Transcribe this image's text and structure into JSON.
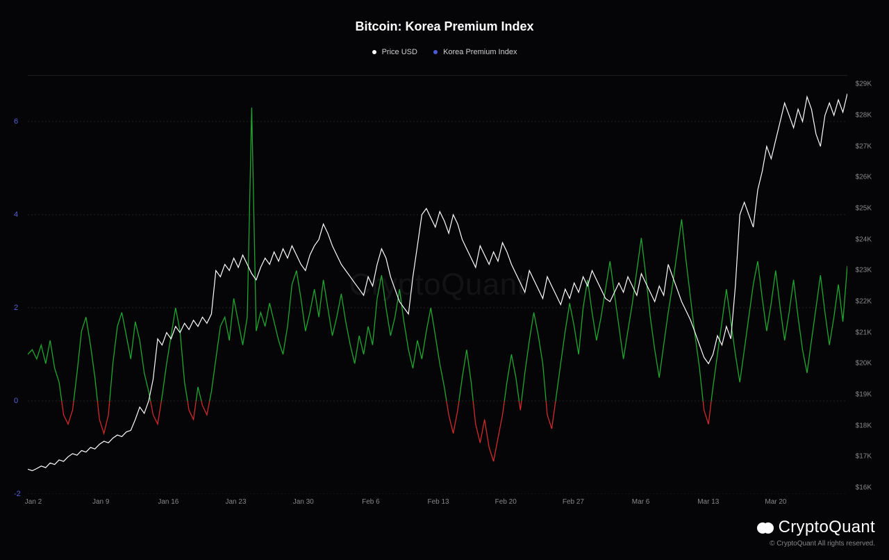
{
  "title": "Bitcoin: Korea Premium Index",
  "legend": {
    "price": {
      "label": "Price USD",
      "color": "#ffffff"
    },
    "premium": {
      "label": "Korea Premium Index",
      "color": "#4a5ad8"
    }
  },
  "watermark": "CryptoQuant",
  "footer": {
    "brand": "CryptoQuant",
    "copyright": "© CryptoQuant All rights reserved."
  },
  "chart": {
    "type": "dual-axis-line",
    "background_color": "#050507",
    "grid_color": "#222222",
    "x": {
      "ticks": [
        "Jan 2",
        "Jan 9",
        "Jan 16",
        "Jan 23",
        "Jan 30",
        "Feb 6",
        "Feb 13",
        "Feb 20",
        "Feb 27",
        "Mar 6",
        "Mar 13",
        "Mar 20"
      ],
      "range": [
        0,
        84
      ]
    },
    "y_left": {
      "label_color": "#5562d6",
      "ticks": [
        -2,
        0,
        2,
        4,
        6
      ],
      "range": [
        -2,
        7
      ]
    },
    "y_right": {
      "label_color": "#888888",
      "ticks": [
        "$16K",
        "$17K",
        "$18K",
        "$19K",
        "$20K",
        "$21K",
        "$22K",
        "$23K",
        "$24K",
        "$25K",
        "$26K",
        "$27K",
        "$28K",
        "$29K"
      ],
      "tick_values": [
        16000,
        17000,
        18000,
        19000,
        20000,
        21000,
        22000,
        23000,
        24000,
        25000,
        26000,
        27000,
        28000,
        29000
      ],
      "range": [
        15800,
        29300
      ]
    },
    "series": {
      "price": {
        "color": "#ffffff",
        "stroke_width": 1.2,
        "data": [
          16600,
          16550,
          16620,
          16700,
          16650,
          16800,
          16750,
          16900,
          16850,
          17000,
          17100,
          17050,
          17200,
          17150,
          17300,
          17250,
          17400,
          17500,
          17450,
          17600,
          17700,
          17650,
          17800,
          17850,
          18200,
          18600,
          18400,
          18800,
          19500,
          20800,
          20600,
          21000,
          20800,
          21200,
          21000,
          21300,
          21100,
          21400,
          21200,
          21500,
          21300,
          21600,
          23000,
          22800,
          23200,
          23000,
          23400,
          23100,
          23500,
          23200,
          22900,
          22700,
          23100,
          23400,
          23200,
          23600,
          23300,
          23700,
          23400,
          23800,
          23500,
          23200,
          23000,
          23500,
          23800,
          24000,
          24500,
          24200,
          23800,
          23500,
          23200,
          23000,
          22800,
          22600,
          22400,
          22200,
          22800,
          22500,
          23200,
          23700,
          23400,
          22800,
          22400,
          22000,
          21800,
          21600,
          22800,
          23800,
          24800,
          25000,
          24700,
          24400,
          24900,
          24600,
          24200,
          24800,
          24500,
          24000,
          23700,
          23400,
          23100,
          23800,
          23500,
          23200,
          23600,
          23300,
          23900,
          23600,
          23200,
          22900,
          22600,
          22300,
          23000,
          22700,
          22400,
          22100,
          22800,
          22500,
          22200,
          21900,
          22400,
          22100,
          22600,
          22300,
          22800,
          22500,
          23000,
          22700,
          22400,
          22100,
          22000,
          22300,
          22600,
          22300,
          22800,
          22500,
          22200,
          22900,
          22600,
          22300,
          22000,
          22500,
          22200,
          23200,
          22800,
          22400,
          22000,
          21700,
          21400,
          21000,
          20600,
          20200,
          20000,
          20300,
          20900,
          20600,
          21200,
          20800,
          22500,
          24800,
          25200,
          24800,
          24400,
          25600,
          26200,
          27000,
          26600,
          27200,
          27800,
          28400,
          28000,
          27600,
          28200,
          27800,
          28600,
          28200,
          27400,
          27000,
          28000,
          28400,
          28000,
          28500,
          28100,
          28700
        ]
      },
      "premium": {
        "color_positive": "#1fa82f",
        "color_negative": "#d32a2a",
        "stroke_width": 1.3,
        "data": [
          1.0,
          1.1,
          0.9,
          1.2,
          0.8,
          1.3,
          0.7,
          0.4,
          -0.3,
          -0.5,
          -0.2,
          0.6,
          1.5,
          1.8,
          1.2,
          0.5,
          -0.4,
          -0.7,
          -0.3,
          0.8,
          1.6,
          1.9,
          1.4,
          0.9,
          1.7,
          1.3,
          0.6,
          0.2,
          -0.3,
          -0.5,
          0.1,
          0.8,
          1.4,
          2.0,
          1.5,
          0.4,
          -0.2,
          -0.4,
          0.3,
          -0.1,
          -0.3,
          0.2,
          0.9,
          1.6,
          1.8,
          1.3,
          2.2,
          1.7,
          1.2,
          1.8,
          6.3,
          1.5,
          1.9,
          1.6,
          2.1,
          1.7,
          1.3,
          1.0,
          1.6,
          2.5,
          2.8,
          2.2,
          1.5,
          1.9,
          2.4,
          1.8,
          2.6,
          2.0,
          1.4,
          1.8,
          2.3,
          1.7,
          1.2,
          0.8,
          1.4,
          1.0,
          1.6,
          1.2,
          2.2,
          2.7,
          2.0,
          1.4,
          1.8,
          2.4,
          1.7,
          1.1,
          0.7,
          1.3,
          0.9,
          1.5,
          2.0,
          1.4,
          0.8,
          0.3,
          -0.3,
          -0.7,
          -0.2,
          0.5,
          1.1,
          0.4,
          -0.5,
          -0.9,
          -0.4,
          -1.0,
          -1.3,
          -0.8,
          -0.3,
          0.4,
          1.0,
          0.5,
          -0.2,
          0.6,
          1.3,
          1.9,
          1.4,
          0.8,
          -0.3,
          -0.6,
          0.1,
          0.8,
          1.5,
          2.1,
          1.6,
          1.0,
          2.0,
          2.6,
          1.9,
          1.3,
          1.8,
          2.4,
          3.0,
          2.3,
          1.6,
          0.9,
          1.5,
          2.1,
          2.8,
          3.5,
          2.7,
          1.8,
          1.1,
          0.5,
          1.2,
          1.9,
          2.5,
          3.2,
          3.9,
          3.0,
          2.2,
          1.4,
          0.7,
          -0.2,
          -0.5,
          0.3,
          1.0,
          1.7,
          2.4,
          1.7,
          1.0,
          0.4,
          1.1,
          1.8,
          2.5,
          3.0,
          2.2,
          1.5,
          2.1,
          2.8,
          2.0,
          1.3,
          1.9,
          2.6,
          1.8,
          1.1,
          0.6,
          1.3,
          2.0,
          2.7,
          1.9,
          1.2,
          1.8,
          2.5,
          1.7,
          2.9
        ]
      }
    }
  }
}
